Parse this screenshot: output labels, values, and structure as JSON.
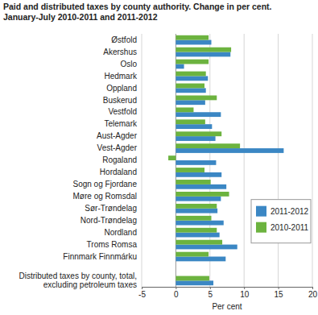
{
  "chart_data": {
    "type": "bar",
    "orientation": "horizontal",
    "title": "Paid and distributed taxes by county authority. Change in per cent.",
    "subtitle": "January-July 2010-2011 and 2011-2012",
    "categories": [
      "Østfold",
      "Akershus",
      "Oslo",
      "Hedmark",
      "Oppland",
      "Buskerud",
      "Vestfold",
      "Telemark",
      "Aust-Agder",
      "Vest-Agder",
      "Rogaland",
      "Hordaland",
      "Sogn og Fjordane",
      "Møre og Romsdal",
      "Sør-Trøndelag",
      "Nord-Trøndelag",
      "Nordland",
      "Troms Romsa",
      "Finnmark Finnmárku",
      null,
      "Distributed taxes by county, total, excluding petroleum taxes"
    ],
    "series": [
      {
        "name": "2011-2012",
        "color": "#3b87c4",
        "values": [
          5.2,
          8.0,
          1.2,
          4.7,
          4.4,
          4.3,
          6.6,
          5.3,
          5.8,
          15.8,
          5.9,
          6.7,
          7.4,
          6.6,
          6.1,
          7.0,
          6.4,
          9.0,
          7.3,
          null,
          5.5
        ]
      },
      {
        "name": "2010-2011",
        "color": "#6cb33f",
        "values": [
          4.8,
          8.1,
          4.8,
          4.4,
          4.2,
          6.0,
          2.6,
          4.3,
          6.7,
          9.4,
          -1.1,
          4.2,
          5.1,
          7.8,
          6.0,
          5.2,
          6.0,
          6.8,
          4.8,
          null,
          4.9
        ]
      }
    ],
    "x_label": "Per cent",
    "xlim": [
      -5,
      20
    ],
    "xticks": [
      -5,
      0,
      5,
      10,
      15,
      20
    ],
    "grid": true,
    "legend": "right"
  }
}
